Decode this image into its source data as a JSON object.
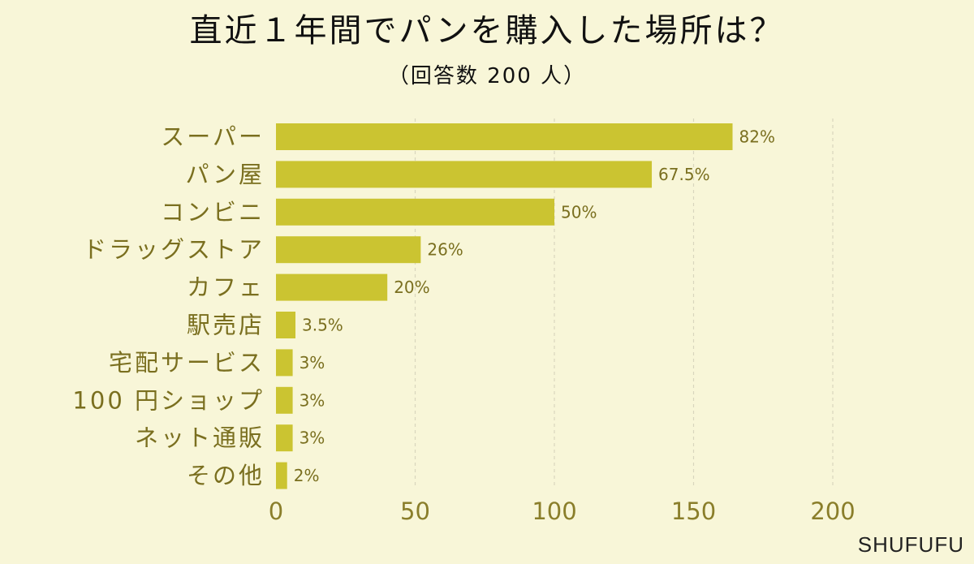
{
  "title": "直近１年間でパンを購入した場所は？",
  "subtitle": "（回答数 200 人）",
  "brand": "SHUFUFU",
  "colors": {
    "background": "#f8f6d8",
    "bar": "#cbc431",
    "label": "#7a6f1f",
    "grid": "#d9d6bd"
  },
  "chart_data": {
    "type": "bar",
    "orientation": "horizontal",
    "title": "直近１年間でパンを購入した場所は？",
    "subtitle": "（回答数 200 人）",
    "categories": [
      "スーパー",
      "パン屋",
      "コンビニ",
      "ドラッグストア",
      "カフェ",
      "駅売店",
      "宅配サービス",
      "100 円ショップ",
      "ネット通販",
      "その他"
    ],
    "values": [
      164,
      135,
      100,
      52,
      40,
      7,
      6,
      6,
      6,
      4
    ],
    "value_labels": [
      "82%",
      "67.5%",
      "50%",
      "26%",
      "20%",
      "3.5%",
      "3%",
      "3%",
      "3%",
      "2%"
    ],
    "xticks": [
      "0",
      "50",
      "100",
      "150",
      "200"
    ],
    "xlim": [
      0,
      200
    ],
    "grid": true,
    "grid_style": "dashed-vertical"
  }
}
